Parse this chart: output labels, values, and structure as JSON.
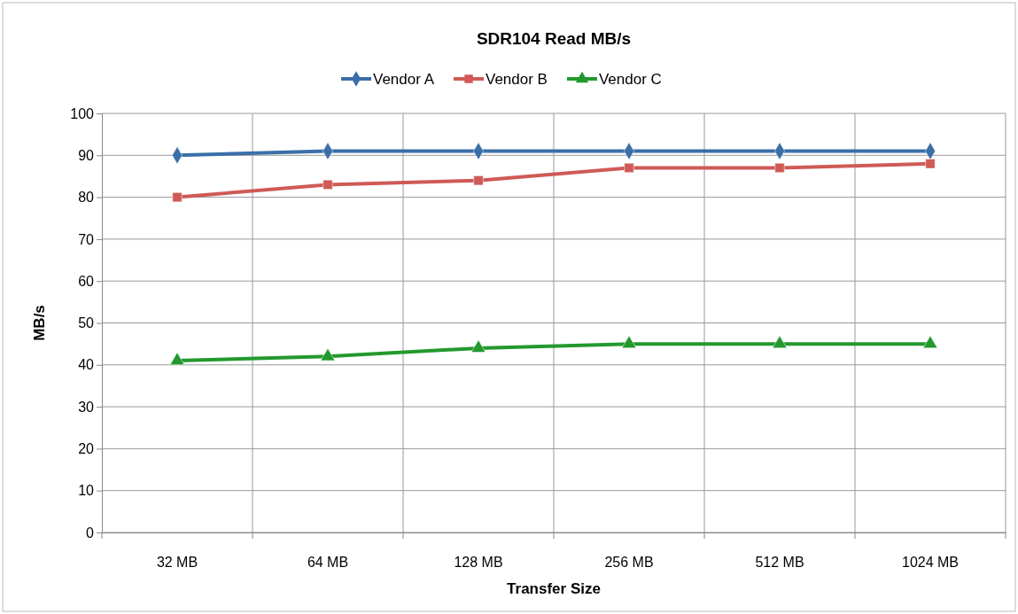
{
  "chart_data": {
    "type": "line",
    "title": "SDR104 Read MB/s",
    "xlabel": "Transfer Size",
    "ylabel": "MB/s",
    "categories": [
      "32 MB",
      "64 MB",
      "128 MB",
      "256 MB",
      "512 MB",
      "1024 MB"
    ],
    "series": [
      {
        "name": "Vendor A",
        "color": "#3a6fa8",
        "marker": "diamond",
        "values": [
          90,
          91,
          91,
          91,
          91,
          91
        ]
      },
      {
        "name": "Vendor B",
        "color": "#cf5a56",
        "marker": "square",
        "values": [
          80,
          83,
          84,
          87,
          87,
          88
        ]
      },
      {
        "name": "Vendor C",
        "color": "#23992d",
        "marker": "triangle",
        "values": [
          41,
          42,
          44,
          45,
          45,
          45
        ]
      }
    ],
    "ylim": [
      0,
      100
    ],
    "yticks": [
      0,
      10,
      20,
      30,
      40,
      50,
      60,
      70,
      80,
      90,
      100
    ],
    "grid": true,
    "legend": "top",
    "line_style": "solid"
  }
}
